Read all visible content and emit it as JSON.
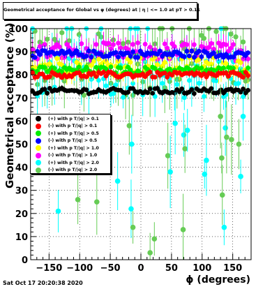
{
  "chart_data": {
    "type": "scatter",
    "title": "Geometrical acceptance for Global vs φ (degrees) at | η | <= 1.0 at pT > 0.11",
    "xlabel": "ϕ (degrees)",
    "ylabel": "Geometrical acceptance (%)",
    "xlim": [
      -180,
      180
    ],
    "ylim": [
      0,
      100
    ],
    "xticks": [
      "−150",
      "−100",
      "−50",
      "0",
      "50",
      "100",
      "150"
    ],
    "xtick_values": [
      -150,
      -100,
      -50,
      0,
      50,
      100,
      150
    ],
    "yticks": [
      "0",
      "10",
      "20",
      "30",
      "40",
      "50",
      "60",
      "70",
      "80",
      "90",
      "100"
    ],
    "ytick_values": [
      0,
      10,
      20,
      30,
      40,
      50,
      60,
      70,
      80,
      90,
      100
    ],
    "grid": true,
    "legend_position": "left",
    "series": [
      {
        "name": "(+) with p T/|q| > 0.1",
        "color": "#000000",
        "level": 73,
        "spread": 1.2,
        "err": 1.0
      },
      {
        "name": "(-) with p T/|q| > 0.1",
        "color": "#ff0000",
        "level": 80,
        "spread": 1.2,
        "err": 1.2
      },
      {
        "name": "(+) with p T/|q| > 0.5",
        "color": "#00ee00",
        "level": 82,
        "spread": 1.5,
        "err": 1.5
      },
      {
        "name": "(-) with p T/|q| > 0.5",
        "color": "#0000ff",
        "level": 89,
        "spread": 1.5,
        "err": 1.5
      },
      {
        "name": "(+) with p T/|q| > 1.0",
        "color": "#ffff00",
        "level": 84,
        "spread": 4,
        "err": 3
      },
      {
        "name": "(-) with p T/|q| > 1.0",
        "color": "#ff00ff",
        "level": 90,
        "spread": 4,
        "err": 3
      },
      {
        "name": "(+) with p T/|q| > 2.0",
        "color": "#00ffff",
        "level": 80,
        "spread": 10,
        "err": 6
      },
      {
        "name": "(-) with p T/|q| > 2.0",
        "color": "#66cc55",
        "level": 85,
        "spread": 14,
        "err": 8
      }
    ],
    "outliers": [
      {
        "series": 6,
        "x": -135,
        "y": 21
      },
      {
        "series": 7,
        "x": -103,
        "y": 26
      },
      {
        "series": 7,
        "x": -72,
        "y": 25
      },
      {
        "series": 6,
        "x": -38,
        "y": 34
      },
      {
        "series": 7,
        "x": -19,
        "y": 58
      },
      {
        "series": 6,
        "x": -15,
        "y": 50
      },
      {
        "series": 6,
        "x": -16,
        "y": 22
      },
      {
        "series": 7,
        "x": -13,
        "y": 14
      },
      {
        "series": 7,
        "x": 15,
        "y": 3
      },
      {
        "series": 7,
        "x": 22,
        "y": 9
      },
      {
        "series": 7,
        "x": 44,
        "y": 45
      },
      {
        "series": 6,
        "x": 48,
        "y": 38
      },
      {
        "series": 6,
        "x": 56,
        "y": 59
      },
      {
        "series": 7,
        "x": 69,
        "y": 13
      },
      {
        "series": 6,
        "x": 70,
        "y": 54
      },
      {
        "series": 7,
        "x": 72,
        "y": 48
      },
      {
        "series": 6,
        "x": 76,
        "y": 56
      },
      {
        "series": 6,
        "x": 104,
        "y": 37
      },
      {
        "series": 6,
        "x": 107,
        "y": 43
      },
      {
        "series": 7,
        "x": 130,
        "y": 62
      },
      {
        "series": 7,
        "x": 132,
        "y": 44
      },
      {
        "series": 7,
        "x": 133,
        "y": 28
      },
      {
        "series": 6,
        "x": 136,
        "y": 14
      },
      {
        "series": 6,
        "x": 138,
        "y": 57
      },
      {
        "series": 7,
        "x": 140,
        "y": 53
      },
      {
        "series": 7,
        "x": 148,
        "y": 52
      },
      {
        "series": 7,
        "x": 160,
        "y": 50
      },
      {
        "series": 6,
        "x": 163,
        "y": 36
      },
      {
        "series": 6,
        "x": 167,
        "y": 62
      }
    ]
  },
  "datestamp": "Sat Oct 17 20:20:38 2020"
}
